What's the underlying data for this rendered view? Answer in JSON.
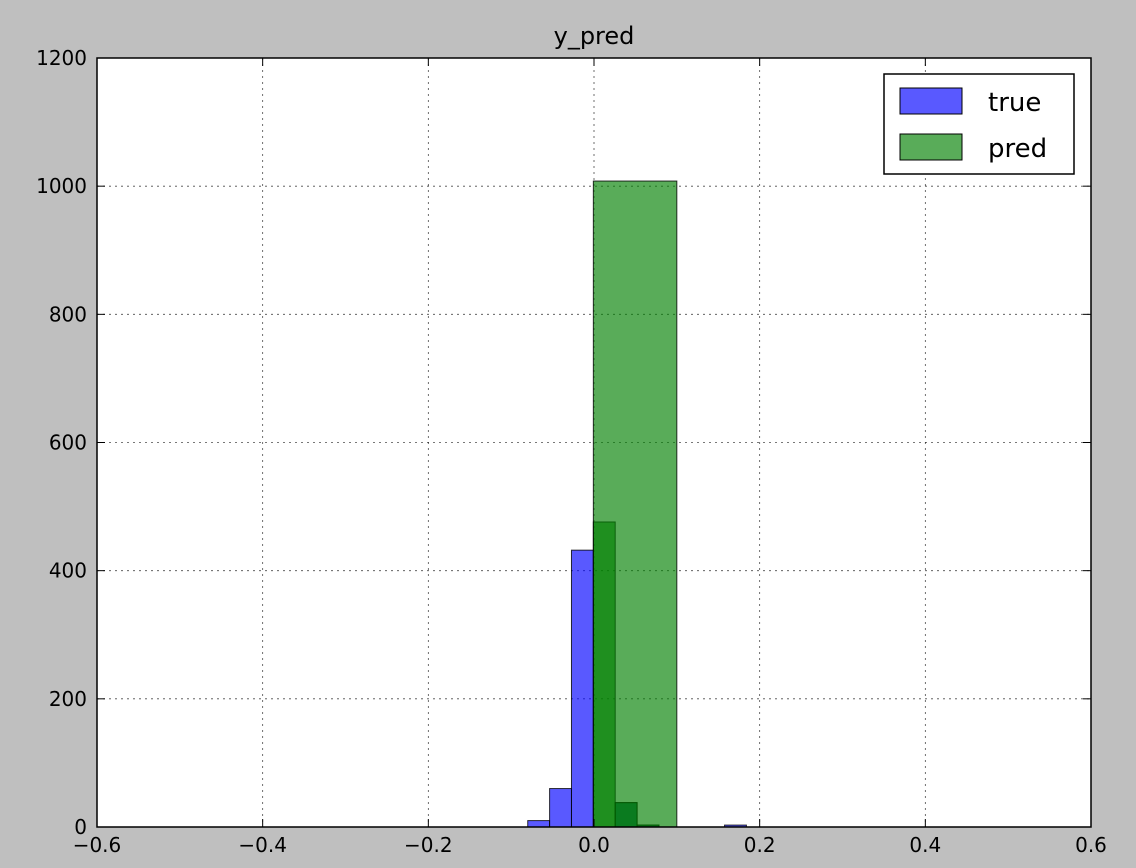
{
  "chart_data": {
    "type": "bar",
    "title": "y_pred",
    "xlabel": "",
    "ylabel": "",
    "xlim": [
      -0.6,
      0.6
    ],
    "ylim": [
      0,
      1200
    ],
    "xticks": [
      -0.6,
      -0.4,
      -0.2,
      0.0,
      0.2,
      0.4,
      0.6
    ],
    "yticks": [
      0,
      200,
      400,
      600,
      800,
      1000,
      1200
    ],
    "xtick_labels": [
      "−0.6",
      "−0.4",
      "−0.2",
      "0.0",
      "0.2",
      "0.4",
      "0.6"
    ],
    "ytick_labels": [
      "0",
      "200",
      "400",
      "600",
      "800",
      "1000",
      "1200"
    ],
    "grid": true,
    "legend_position": "top-right",
    "series": [
      {
        "name": "true",
        "color": "#0000ff",
        "bin_width": 0.0264,
        "bins": [
          {
            "x0": -0.08,
            "value": 10
          },
          {
            "x0": -0.0536,
            "value": 60
          },
          {
            "x0": -0.0272,
            "value": 432
          },
          {
            "x0": 0.0256,
            "value": 38
          },
          {
            "x0": 0.052,
            "value": 3
          },
          {
            "x0": 0.1576,
            "value": 3
          }
        ]
      },
      {
        "name": "pred",
        "color": "#008000",
        "bin_width": 0.0264,
        "bins": [
          {
            "x0": -0.0008,
            "value": 476
          },
          {
            "x0": 0.0256,
            "value": 38
          },
          {
            "x0": 0.052,
            "value": 3
          },
          {
            "x0": -0.0008,
            "value": 1008,
            "x1": 0.1
          }
        ]
      }
    ]
  }
}
